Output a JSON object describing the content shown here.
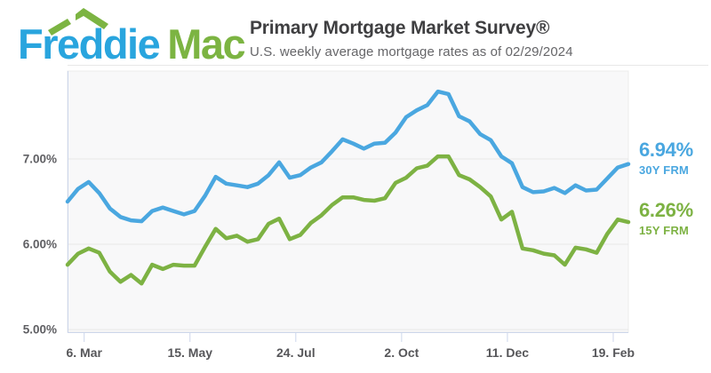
{
  "header": {
    "logo_word1": "Freddie",
    "logo_word2": "Mac",
    "logo_blue": "#29A5DE",
    "logo_green": "#7CB442",
    "title": "Primary Mortgage Market Survey®",
    "subtitle": "U.S. weekly average mortgage rates as of 02/29/2024"
  },
  "chart_data": {
    "type": "line",
    "title": "Primary Mortgage Market Survey",
    "xlabel": "",
    "ylabel": "",
    "ylim": [
      4.97,
      8.03
    ],
    "grid": true,
    "legend_position": "right-annotations",
    "colors": {
      "plot_bg": "#f8f8f9",
      "plot_border": "#ececec",
      "grid": "#e7e7e7",
      "axis": "#ccd6eb",
      "hairline": "#e8e8e8"
    },
    "y_ticks": [
      {
        "label": "7.00%",
        "value": 7.0
      },
      {
        "label": "6.00%",
        "value": 6.0
      },
      {
        "label": "5.00%",
        "value": 5.0
      }
    ],
    "x_ticks": [
      {
        "label": "6. Mar",
        "week": 1.571
      },
      {
        "label": "15. May",
        "week": 11.571
      },
      {
        "label": "24. Jul",
        "week": 21.571
      },
      {
        "label": "2. Oct",
        "week": 31.571
      },
      {
        "label": "11. Dec",
        "week": 41.571
      },
      {
        "label": "19. Feb",
        "week": 51.571
      }
    ],
    "x_unit": "weekly, 02/23/2023 - 02/29/2024",
    "series": [
      {
        "name": "30Y FRM",
        "color": "#4AA7E0",
        "current_label": "6.94%",
        "values": [
          6.5,
          6.65,
          6.73,
          6.6,
          6.42,
          6.32,
          6.28,
          6.27,
          6.39,
          6.43,
          6.39,
          6.35,
          6.39,
          6.57,
          6.79,
          6.71,
          6.69,
          6.67,
          6.71,
          6.81,
          6.96,
          6.78,
          6.81,
          6.9,
          6.96,
          7.09,
          7.23,
          7.18,
          7.12,
          7.18,
          7.19,
          7.31,
          7.49,
          7.57,
          7.63,
          7.79,
          7.76,
          7.5,
          7.44,
          7.29,
          7.22,
          7.03,
          6.95,
          6.67,
          6.61,
          6.62,
          6.66,
          6.6,
          6.69,
          6.63,
          6.64,
          6.77,
          6.9,
          6.94
        ]
      },
      {
        "name": "15Y FRM",
        "color": "#7DB243",
        "current_label": "6.26%",
        "values": [
          5.76,
          5.89,
          5.95,
          5.9,
          5.68,
          5.56,
          5.64,
          5.54,
          5.76,
          5.71,
          5.76,
          5.75,
          5.75,
          5.97,
          6.18,
          6.07,
          6.1,
          6.03,
          6.06,
          6.24,
          6.3,
          6.06,
          6.11,
          6.25,
          6.34,
          6.46,
          6.55,
          6.55,
          6.52,
          6.51,
          6.54,
          6.72,
          6.78,
          6.89,
          6.92,
          7.03,
          7.03,
          6.81,
          6.76,
          6.67,
          6.56,
          6.29,
          6.38,
          5.95,
          5.93,
          5.89,
          5.87,
          5.76,
          5.96,
          5.94,
          5.9,
          6.12,
          6.29,
          6.26
        ]
      }
    ]
  }
}
